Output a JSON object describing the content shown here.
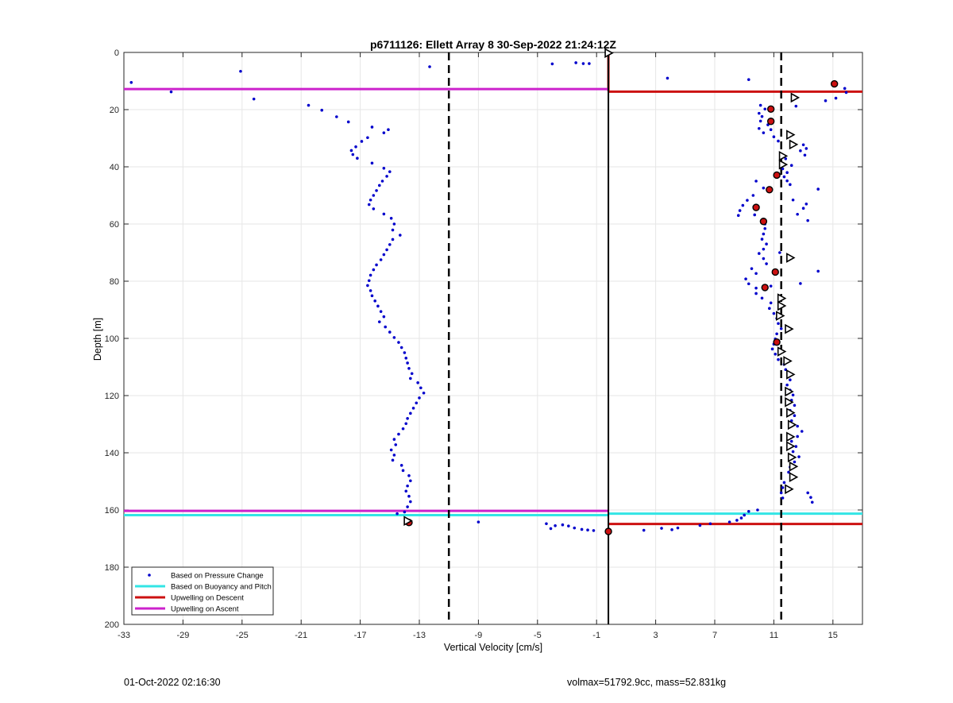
{
  "chart_data": {
    "type": "scatter",
    "title": "p6711126: Ellett Array 8 30-Sep-2022 21:24:12Z",
    "xlabel": "Vertical Velocity [cm/s]",
    "ylabel": "Depth [m]",
    "xlim": [
      -33,
      17
    ],
    "ylim": [
      0,
      200
    ],
    "y_reversed": true,
    "grid": true,
    "legend_position": "bottom-left",
    "xticks": [
      -33,
      -29,
      -25,
      -21,
      -17,
      -13,
      -9,
      -5,
      -1,
      3,
      7,
      11,
      15
    ],
    "yticks": [
      0,
      20,
      40,
      60,
      80,
      100,
      120,
      140,
      160,
      180,
      200
    ],
    "colors": {
      "pressure": "#0000cc",
      "buoyancy": "#33e5e5",
      "descent": "#cc1111",
      "ascent": "#cc22cc",
      "reference": "#000000"
    },
    "series": [
      {
        "name": "Based on Pressure Change",
        "style": "dots",
        "points": [
          [
            -32.5,
            10.5
          ],
          [
            -29.8,
            13.8
          ],
          [
            -25.1,
            6.6
          ],
          [
            -24.2,
            16.3
          ],
          [
            -12.3,
            5.0
          ],
          [
            -4.0,
            4.0
          ],
          [
            -2.4,
            3.6
          ],
          [
            -1.9,
            3.9
          ],
          [
            -1.5,
            3.9
          ],
          [
            3.8,
            9.0
          ],
          [
            9.3,
            9.5
          ],
          [
            14.5,
            16.9
          ],
          [
            15.2,
            16.0
          ],
          [
            15.8,
            12.6
          ],
          [
            15.9,
            14.0
          ],
          [
            -20.5,
            18.5
          ],
          [
            -19.6,
            20.2
          ],
          [
            -18.6,
            22.5
          ],
          [
            -17.8,
            24.3
          ],
          [
            -16.2,
            26.1
          ],
          [
            -15.4,
            28.1
          ],
          [
            -15.1,
            27.0
          ],
          [
            -16.5,
            29.8
          ],
          [
            -16.9,
            31.1
          ],
          [
            -17.3,
            33.0
          ],
          [
            -17.6,
            34.3
          ],
          [
            -17.5,
            35.7
          ],
          [
            -17.2,
            37.0
          ],
          [
            -16.2,
            38.7
          ],
          [
            -15.4,
            40.5
          ],
          [
            -15.0,
            41.7
          ],
          [
            -15.2,
            43.3
          ],
          [
            -15.5,
            45.0
          ],
          [
            -15.7,
            46.5
          ],
          [
            -15.9,
            48.3
          ],
          [
            -16.1,
            50.0
          ],
          [
            -16.3,
            51.6
          ],
          [
            -16.4,
            53.2
          ],
          [
            -16.1,
            54.7
          ],
          [
            -15.4,
            56.5
          ],
          [
            -14.9,
            58.0
          ],
          [
            -14.7,
            60.0
          ],
          [
            -14.8,
            62.1
          ],
          [
            -14.3,
            63.9
          ],
          [
            -14.8,
            65.4
          ],
          [
            -15.0,
            67.2
          ],
          [
            -15.2,
            69.0
          ],
          [
            -15.4,
            70.7
          ],
          [
            -15.6,
            72.5
          ],
          [
            -15.9,
            74.3
          ],
          [
            -16.1,
            76.0
          ],
          [
            -16.3,
            77.9
          ],
          [
            -16.4,
            79.8
          ],
          [
            -16.5,
            81.5
          ],
          [
            -16.3,
            83.3
          ],
          [
            -16.2,
            85.1
          ],
          [
            -16.0,
            86.9
          ],
          [
            -15.8,
            88.7
          ],
          [
            -15.6,
            90.6
          ],
          [
            -15.4,
            92.4
          ],
          [
            -15.7,
            94.2
          ],
          [
            -15.3,
            96.0
          ],
          [
            -15.0,
            97.8
          ],
          [
            -14.7,
            99.7
          ],
          [
            -14.4,
            101.4
          ],
          [
            -14.2,
            103.2
          ],
          [
            -14.0,
            105.0
          ],
          [
            -13.9,
            106.9
          ],
          [
            -13.8,
            108.6
          ],
          [
            -13.7,
            110.5
          ],
          [
            -13.5,
            112.3
          ],
          [
            -13.6,
            114.0
          ],
          [
            -13.1,
            115.5
          ],
          [
            -12.9,
            117.3
          ],
          [
            -12.7,
            119.1
          ],
          [
            -13.0,
            120.8
          ],
          [
            -13.2,
            122.6
          ],
          [
            -13.4,
            124.4
          ],
          [
            -13.6,
            126.2
          ],
          [
            -13.8,
            128.0
          ],
          [
            -13.9,
            129.8
          ],
          [
            -14.1,
            131.6
          ],
          [
            -14.4,
            133.5
          ],
          [
            -14.7,
            135.3
          ],
          [
            -14.6,
            137.2
          ],
          [
            -14.9,
            139.0
          ],
          [
            -14.7,
            140.8
          ],
          [
            -14.8,
            142.6
          ],
          [
            -14.2,
            144.4
          ],
          [
            -14.1,
            146.2
          ],
          [
            -13.7,
            148.0
          ],
          [
            -13.6,
            149.8
          ],
          [
            -13.8,
            151.6
          ],
          [
            -13.9,
            153.4
          ],
          [
            -13.7,
            155.2
          ],
          [
            -13.6,
            157.1
          ],
          [
            -13.8,
            158.9
          ],
          [
            -14.0,
            160.7
          ],
          [
            -14.5,
            161.3
          ],
          [
            9.8,
            45.0
          ],
          [
            10.3,
            47.4
          ],
          [
            9.6,
            50.0
          ],
          [
            9.2,
            51.7
          ],
          [
            8.9,
            53.5
          ],
          [
            8.7,
            55.3
          ],
          [
            8.6,
            57.0
          ],
          [
            9.7,
            56.8
          ],
          [
            10.3,
            58.3
          ],
          [
            10.4,
            60.0
          ],
          [
            10.4,
            61.6
          ],
          [
            10.3,
            63.5
          ],
          [
            10.2,
            65.3
          ],
          [
            10.5,
            67.0
          ],
          [
            10.3,
            68.8
          ],
          [
            10.0,
            70.3
          ],
          [
            10.3,
            72.1
          ],
          [
            10.5,
            73.9
          ],
          [
            9.5,
            75.6
          ],
          [
            9.8,
            77.3
          ],
          [
            9.1,
            79.2
          ],
          [
            9.3,
            80.9
          ],
          [
            9.8,
            82.4
          ],
          [
            9.8,
            84.3
          ],
          [
            10.2,
            85.9
          ],
          [
            10.8,
            87.6
          ],
          [
            10.7,
            89.5
          ],
          [
            11.0,
            91.3
          ],
          [
            11.2,
            93.0
          ],
          [
            11.3,
            94.8
          ],
          [
            11.5,
            96.6
          ],
          [
            11.2,
            98.4
          ],
          [
            11.1,
            100.2
          ],
          [
            11.0,
            102.0
          ],
          [
            10.9,
            103.7
          ],
          [
            11.1,
            105.5
          ],
          [
            11.3,
            107.4
          ],
          [
            11.7,
            109.1
          ],
          [
            11.8,
            110.9
          ],
          [
            12.0,
            112.6
          ],
          [
            12.1,
            114.5
          ],
          [
            11.9,
            116.3
          ],
          [
            12.1,
            118.1
          ],
          [
            12.3,
            119.8
          ],
          [
            12.2,
            121.6
          ],
          [
            12.4,
            123.4
          ],
          [
            12.1,
            125.2
          ],
          [
            12.4,
            127.0
          ],
          [
            12.2,
            128.8
          ],
          [
            12.6,
            130.7
          ],
          [
            12.9,
            132.5
          ],
          [
            12.6,
            134.3
          ],
          [
            12.2,
            136.0
          ],
          [
            12.5,
            137.8
          ],
          [
            12.3,
            139.6
          ],
          [
            12.7,
            141.4
          ],
          [
            12.4,
            143.2
          ],
          [
            12.1,
            145.0
          ],
          [
            12.0,
            146.8
          ],
          [
            12.3,
            148.5
          ],
          [
            11.7,
            150.4
          ],
          [
            11.6,
            152.2
          ],
          [
            11.5,
            154.0
          ],
          [
            11.6,
            155.8
          ],
          [
            13.3,
            154.0
          ],
          [
            13.5,
            155.6
          ],
          [
            13.6,
            157.3
          ],
          [
            9.3,
            160.5
          ],
          [
            9.9,
            160.0
          ],
          [
            9.0,
            161.8
          ],
          [
            8.8,
            162.8
          ],
          [
            8.5,
            163.6
          ],
          [
            8.0,
            164.2
          ],
          [
            6.7,
            164.8
          ],
          [
            6.0,
            165.4
          ],
          [
            4.5,
            166.3
          ],
          [
            4.1,
            166.9
          ],
          [
            3.4,
            166.4
          ],
          [
            2.2,
            167.1
          ],
          [
            -1.2,
            167.2
          ],
          [
            -1.6,
            167.0
          ],
          [
            -2.0,
            166.8
          ],
          [
            -2.5,
            166.3
          ],
          [
            -2.9,
            165.6
          ],
          [
            -3.3,
            165.2
          ],
          [
            -3.8,
            165.5
          ],
          [
            -4.1,
            166.5
          ],
          [
            -4.4,
            164.8
          ],
          [
            -9.0,
            164.2
          ],
          [
            10.1,
            18.5
          ],
          [
            10.4,
            19.8
          ],
          [
            10.0,
            21.3
          ],
          [
            10.2,
            22.4
          ],
          [
            10.1,
            24.0
          ],
          [
            10.6,
            25.3
          ],
          [
            10.0,
            26.6
          ],
          [
            10.8,
            27.0
          ],
          [
            10.3,
            28.1
          ],
          [
            11.0,
            29.5
          ],
          [
            11.3,
            31.0
          ],
          [
            12.5,
            18.8
          ],
          [
            13.0,
            32.3
          ],
          [
            13.2,
            33.6
          ],
          [
            12.8,
            34.4
          ],
          [
            13.1,
            35.9
          ],
          [
            11.8,
            37.2
          ],
          [
            11.5,
            38.8
          ],
          [
            12.2,
            39.5
          ],
          [
            11.6,
            40.7
          ],
          [
            11.9,
            42.0
          ],
          [
            11.7,
            43.5
          ],
          [
            11.9,
            44.9
          ],
          [
            12.1,
            46.2
          ],
          [
            14.0,
            47.8
          ],
          [
            12.3,
            51.6
          ],
          [
            13.2,
            53.0
          ],
          [
            13.0,
            54.5
          ],
          [
            12.6,
            56.6
          ],
          [
            13.3,
            58.8
          ],
          [
            11.4,
            70.0
          ],
          [
            14.0,
            76.5
          ],
          [
            12.8,
            80.8
          ],
          [
            10.8,
            81.7
          ]
        ]
      },
      {
        "name": "Based on Buoyancy and Pitch",
        "style": "line",
        "segments": [
          {
            "x": [
              -33,
              -0.2
            ],
            "y": [
              161.8,
              161.8
            ]
          },
          {
            "x": [
              -0.2,
              17
            ],
            "y": [
              161.3,
              161.3
            ]
          }
        ]
      },
      {
        "name": "Upwelling on Descent",
        "style": "line",
        "segments": [
          {
            "x": [
              -0.2,
              17
            ],
            "y": [
              13.7,
              13.7
            ]
          },
          {
            "x": [
              -0.2,
              17
            ],
            "y": [
              164.9,
              164.9
            ]
          },
          {
            "x": [
              -0.2,
              -0.2
            ],
            "y": [
              0,
              13.5
            ]
          }
        ]
      },
      {
        "name": "Upwelling on Ascent",
        "style": "line",
        "segments": [
          {
            "x": [
              -33,
              -0.2
            ],
            "y": [
              12.8,
              12.8
            ]
          },
          {
            "x": [
              -33,
              -0.2
            ],
            "y": [
              160.3,
              160.3
            ]
          }
        ]
      }
    ],
    "descent_markers": [
      [
        15.1,
        11.0
      ],
      [
        10.8,
        19.8
      ],
      [
        10.8,
        24.1
      ],
      [
        11.2,
        42.9
      ],
      [
        10.7,
        48.0
      ],
      [
        9.8,
        54.2
      ],
      [
        10.3,
        59.1
      ],
      [
        11.1,
        76.8
      ],
      [
        10.4,
        82.2
      ],
      [
        11.2,
        101.3
      ],
      [
        -13.7,
        164.4
      ],
      [
        -0.2,
        167.5
      ]
    ],
    "ascent_markers": [
      [
        12.4,
        15.8
      ],
      [
        12.1,
        28.8
      ],
      [
        12.3,
        32.2
      ],
      [
        11.6,
        36.2
      ],
      [
        11.6,
        39.2
      ],
      [
        12.1,
        71.8
      ],
      [
        11.5,
        86.0
      ],
      [
        11.5,
        88.6
      ],
      [
        11.4,
        92.1
      ],
      [
        12.0,
        96.7
      ],
      [
        11.5,
        104.6
      ],
      [
        11.9,
        107.9
      ],
      [
        12.1,
        112.6
      ],
      [
        12.0,
        118.6
      ],
      [
        12.0,
        122.3
      ],
      [
        12.1,
        126.0
      ],
      [
        12.2,
        130.2
      ],
      [
        12.1,
        134.4
      ],
      [
        12.1,
        137.7
      ],
      [
        12.2,
        141.6
      ],
      [
        12.3,
        144.8
      ],
      [
        12.3,
        148.5
      ],
      [
        12.0,
        152.7
      ],
      [
        -0.2,
        0.2
      ],
      [
        -13.8,
        163.8
      ]
    ],
    "reference_lines": {
      "solid_x": -0.2,
      "dashed_x": [
        -11.0,
        11.5
      ]
    }
  },
  "footer": {
    "left": "01-Oct-2022 02:16:30",
    "right": "volmax=51792.9cc, mass=52.831kg"
  }
}
